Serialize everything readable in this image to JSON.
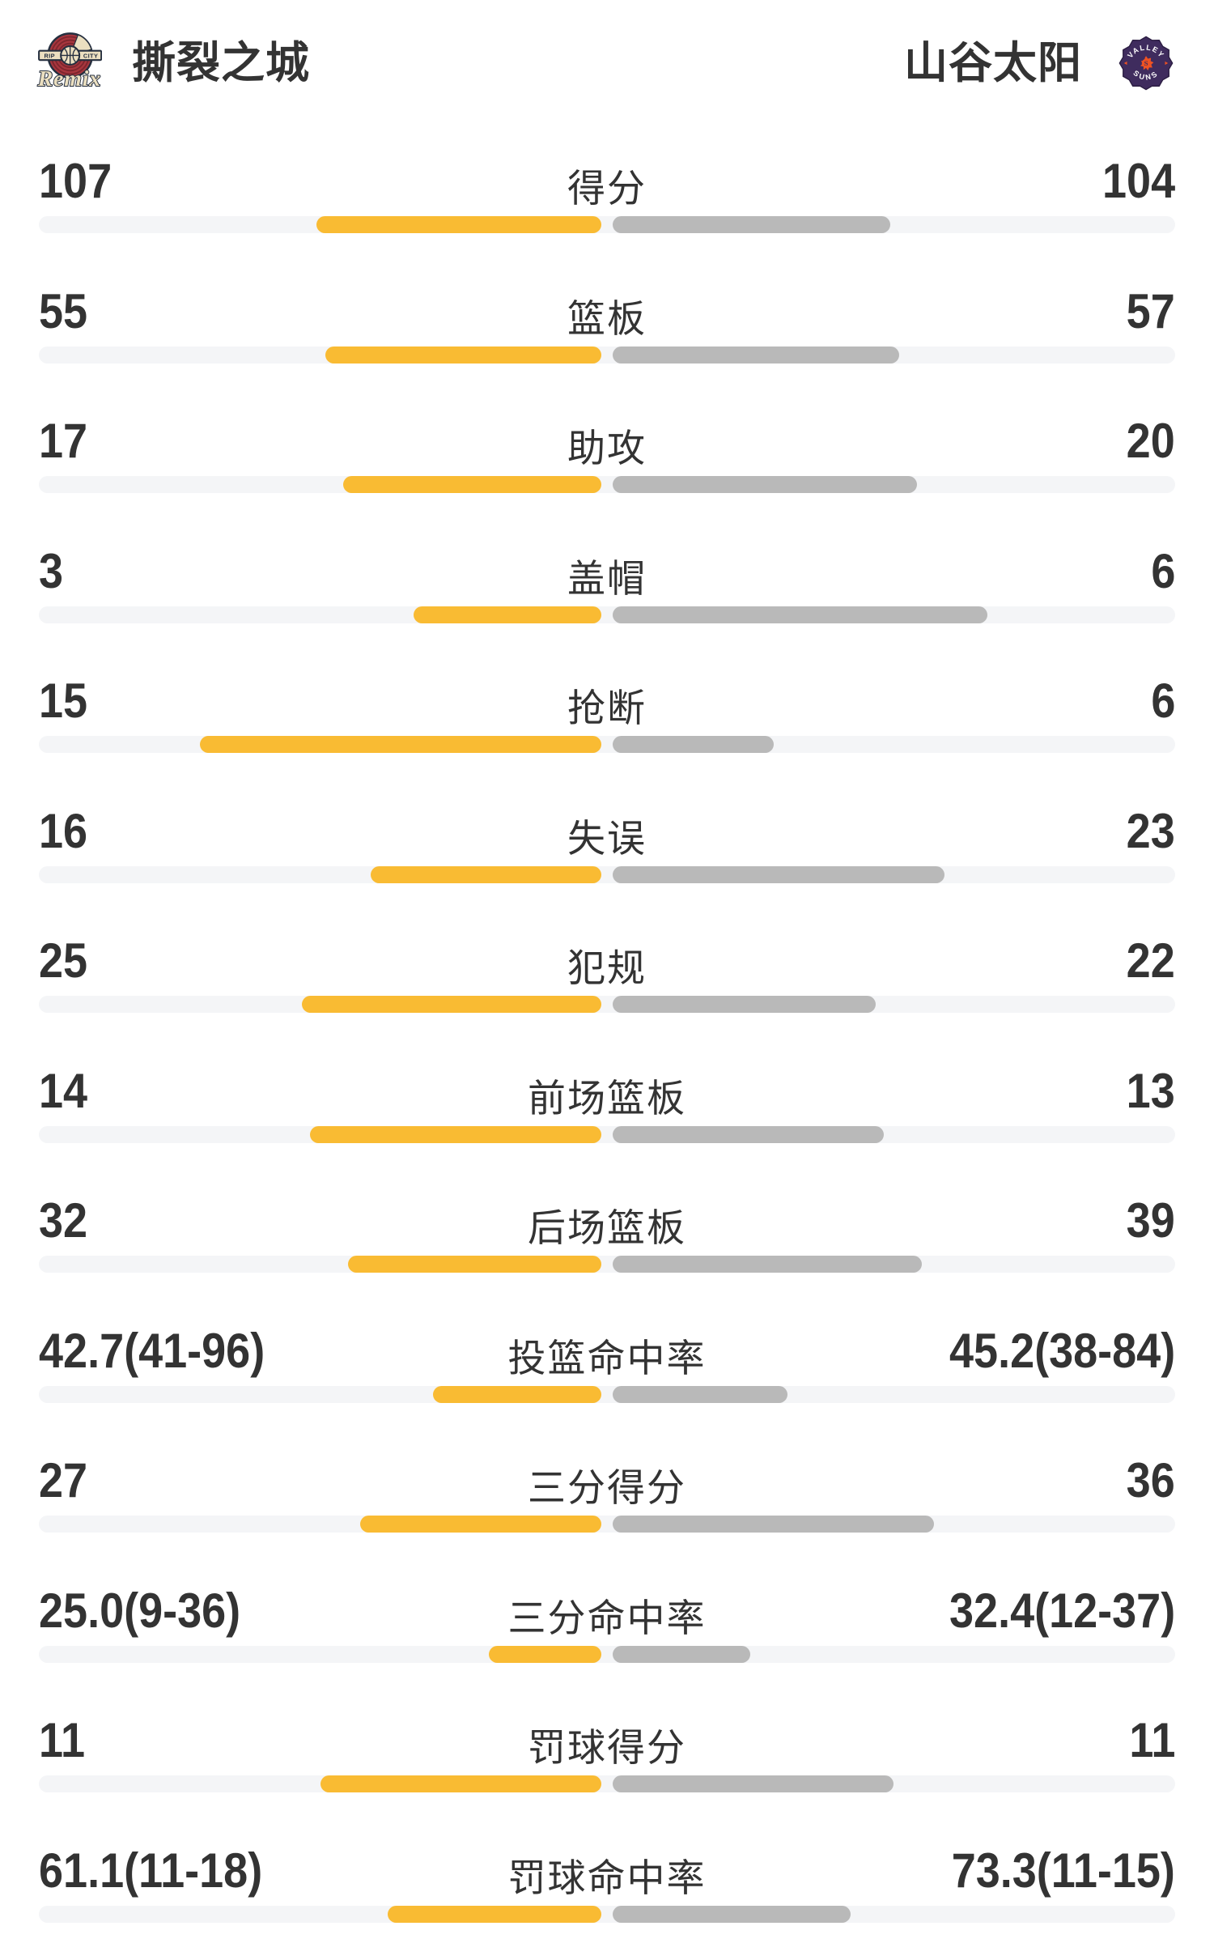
{
  "header": {
    "home": {
      "name": "撕裂之城",
      "logo": {
        "name": "rip-city-remix",
        "banner_left": "RIP",
        "banner_right": "CITY",
        "script": "Remix"
      }
    },
    "away": {
      "name": "山谷太阳",
      "logo": {
        "name": "valley-suns",
        "arc_top": "VALLEY",
        "arc_bottom": "SUNS",
        "center_letter": "S"
      }
    }
  },
  "colors": {
    "home_bar": "#F9BB33",
    "away_bar": "#B9B9B9",
    "track": "#F4F5F7",
    "text": "#333333",
    "logo_home_red": "#A8363E",
    "logo_home_cream": "#EBDFC0",
    "logo_home_dark": "#252F3F",
    "logo_away_purple": "#3F2C5E",
    "logo_away_orange": "#EE5223"
  },
  "stats": [
    {
      "label": "得分",
      "percent": false,
      "home": {
        "display": "107",
        "value": 107
      },
      "away": {
        "display": "104",
        "value": 104
      }
    },
    {
      "label": "篮板",
      "percent": false,
      "home": {
        "display": "55",
        "value": 55
      },
      "away": {
        "display": "57",
        "value": 57
      }
    },
    {
      "label": "助攻",
      "percent": false,
      "home": {
        "display": "17",
        "value": 17
      },
      "away": {
        "display": "20",
        "value": 20
      }
    },
    {
      "label": "盖帽",
      "percent": false,
      "home": {
        "display": "3",
        "value": 3
      },
      "away": {
        "display": "6",
        "value": 6
      }
    },
    {
      "label": "抢断",
      "percent": false,
      "home": {
        "display": "15",
        "value": 15
      },
      "away": {
        "display": "6",
        "value": 6
      }
    },
    {
      "label": "失误",
      "percent": false,
      "home": {
        "display": "16",
        "value": 16
      },
      "away": {
        "display": "23",
        "value": 23
      }
    },
    {
      "label": "犯规",
      "percent": false,
      "home": {
        "display": "25",
        "value": 25
      },
      "away": {
        "display": "22",
        "value": 22
      }
    },
    {
      "label": "前场篮板",
      "percent": false,
      "home": {
        "display": "14",
        "value": 14
      },
      "away": {
        "display": "13",
        "value": 13
      }
    },
    {
      "label": "后场篮板",
      "percent": false,
      "home": {
        "display": "32",
        "value": 32
      },
      "away": {
        "display": "39",
        "value": 39
      }
    },
    {
      "label": "投篮命中率",
      "percent": true,
      "home": {
        "display": "42.7(41-96)",
        "value": 42.7
      },
      "away": {
        "display": "45.2(38-84)",
        "value": 45.2
      }
    },
    {
      "label": "三分得分",
      "percent": false,
      "home": {
        "display": "27",
        "value": 27
      },
      "away": {
        "display": "36",
        "value": 36
      }
    },
    {
      "label": "三分命中率",
      "percent": true,
      "home": {
        "display": "25.0(9-36)",
        "value": 25.0
      },
      "away": {
        "display": "32.4(12-37)",
        "value": 32.4
      }
    },
    {
      "label": "罚球得分",
      "percent": false,
      "home": {
        "display": "11",
        "value": 11
      },
      "away": {
        "display": "11",
        "value": 11
      }
    },
    {
      "label": "罚球命中率",
      "percent": true,
      "home": {
        "display": "61.1(11-18)",
        "value": 61.1
      },
      "away": {
        "display": "73.3(11-15)",
        "value": 73.3
      }
    }
  ]
}
